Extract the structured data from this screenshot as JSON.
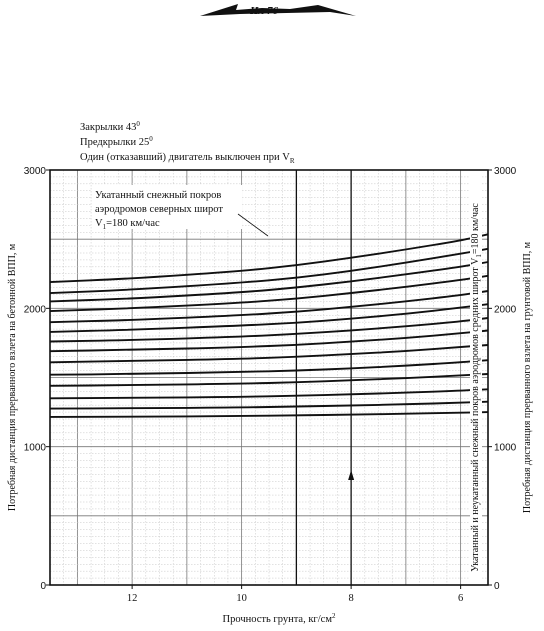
{
  "header_mark": "Ил 76",
  "conditions": {
    "line1": "Закрылки 43",
    "line1_sup": "0",
    "line2": "Предкрылки 25",
    "line2_sup": "0",
    "line3": "Один (отказавший) двигатель выключен при V",
    "line3_sub": "R"
  },
  "annotation": {
    "line1": "Укатанный снежный покров",
    "line2": "аэродромов северных широт",
    "line3": "V",
    "line3_sub": "1",
    "line3_rest": "=180 км/час"
  },
  "chart_data": {
    "type": "line",
    "xlabel": "Прочность грунта, кг/см",
    "xlabel_sup": "2",
    "ylabel_left": "Потребная дистанция прерванного взлета на бетонной ВПП, м",
    "ylabel_right": "Потребная дистанция прерванного взлета на грунтовой ВПП, м",
    "inner_label": "Укатанный и неукатанный снежный покров аэродромов средних широт  V",
    "inner_label_sub": "1",
    "inner_label_rest": "=180 км/час",
    "xlim": [
      13.5,
      5.5
    ],
    "ylim": [
      0,
      3000
    ],
    "x_ticks": [
      12,
      10,
      8,
      6
    ],
    "x_tick_labels": [
      "12",
      "10",
      "8",
      "6"
    ],
    "y_ticks": [
      0,
      1000,
      2000,
      3000
    ],
    "y_tick_labels_left": [
      "0",
      "1000",
      "2000",
      "3000"
    ],
    "y_tick_labels_right": [
      "0",
      "1000",
      "2000",
      "3000"
    ],
    "grid": true,
    "x": [
      13.5,
      12,
      10,
      9,
      8,
      7,
      6,
      5.5
    ],
    "series": [
      {
        "values": [
          2190,
          2215,
          2270,
          2310,
          2365,
          2425,
          2490,
          2535
        ]
      },
      {
        "values": [
          2110,
          2135,
          2185,
          2220,
          2270,
          2330,
          2395,
          2430
        ]
      },
      {
        "values": [
          2050,
          2070,
          2115,
          2150,
          2195,
          2245,
          2300,
          2335
        ]
      },
      {
        "values": [
          1980,
          2000,
          2040,
          2070,
          2110,
          2155,
          2205,
          2235
        ]
      },
      {
        "values": [
          1900,
          1915,
          1950,
          1975,
          2010,
          2050,
          2095,
          2125
        ]
      },
      {
        "values": [
          1830,
          1845,
          1875,
          1895,
          1925,
          1960,
          2005,
          2030
        ]
      },
      {
        "values": [
          1760,
          1770,
          1795,
          1815,
          1840,
          1870,
          1905,
          1930
        ]
      },
      {
        "values": [
          1690,
          1700,
          1720,
          1735,
          1760,
          1785,
          1820,
          1840
        ]
      },
      {
        "values": [
          1610,
          1620,
          1635,
          1650,
          1670,
          1690,
          1720,
          1735
        ]
      },
      {
        "values": [
          1520,
          1525,
          1540,
          1550,
          1565,
          1585,
          1610,
          1625
        ]
      },
      {
        "values": [
          1440,
          1445,
          1455,
          1465,
          1480,
          1495,
          1515,
          1525
        ]
      },
      {
        "values": [
          1350,
          1352,
          1360,
          1368,
          1378,
          1390,
          1405,
          1415
        ]
      },
      {
        "values": [
          1275,
          1278,
          1283,
          1290,
          1298,
          1306,
          1318,
          1325
        ]
      },
      {
        "values": [
          1215,
          1217,
          1221,
          1226,
          1232,
          1238,
          1246,
          1250
        ]
      }
    ],
    "reference_lines": [
      {
        "type": "vertical",
        "x": 9
      },
      {
        "type": "vertical",
        "x": 8
      }
    ]
  }
}
